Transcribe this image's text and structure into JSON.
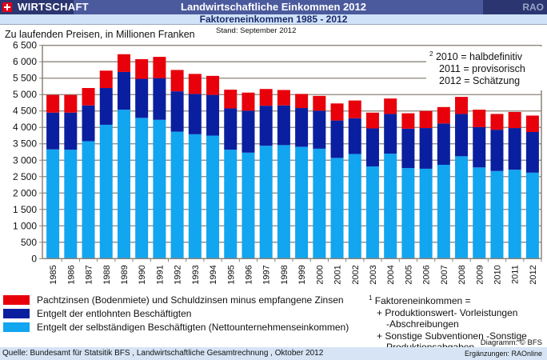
{
  "header": {
    "section": "WIRTSCHAFT",
    "title": "Landwirtschaftliche Einkommen 2012",
    "brand": "RAO",
    "subtitle": "Faktoreneinkommen 1985 - 2012",
    "flag_icon": "swiss-flag-icon"
  },
  "chart_meta": {
    "units_label": "Zu laufenden Preisen, in Millionen Franken",
    "stand": "Stand: September 2012",
    "note_lines": [
      "2010 = halbdefinitiv",
      "2011 = provisorisch",
      "2012 = Schätzung"
    ],
    "note_superscript": "2",
    "footnote_superscript": "1",
    "footnote_lines": [
      "Faktoreneinkommen =",
      "+ Produktionswert- Vorleistungen",
      "-Abschreibungen",
      "+ Sonstige Subventionen -Sonstige",
      "Produktionsabgaben"
    ],
    "credit": "Diagramm: © BFS"
  },
  "footer": {
    "source": "Quelle: Bundesamt für Statsitik BFS , Landwirtschaftliche Gesamtrechnung , Oktober 2012",
    "extras": "Ergänzungen: RAOnline"
  },
  "chart_data": {
    "type": "bar",
    "stacked": true,
    "title": "Faktoreneinkommen 1985 - 2012",
    "ylabel": "Zu laufenden Preisen, in Millionen Franken",
    "xlabel": "",
    "ylim": [
      0,
      6500
    ],
    "yticks": [
      0,
      500,
      1000,
      1500,
      2000,
      2500,
      3000,
      3500,
      4000,
      4500,
      5000,
      5500,
      6000,
      6500
    ],
    "ytick_labels": [
      "0",
      "500",
      "1 000",
      "1 500",
      "2 000",
      "2 500",
      "3 000",
      "3 500",
      "4 000",
      "4 500",
      "5 000",
      "5 500",
      "6 000",
      "6 500"
    ],
    "grid": true,
    "legend_position": "bottom-left",
    "categories": [
      "1985",
      "1986",
      "1987",
      "1988",
      "1989",
      "1990",
      "1991",
      "1992",
      "1993",
      "1994",
      "1995",
      "1996",
      "1997",
      "1998",
      "1999",
      "2000",
      "2001",
      "2002",
      "2003",
      "2004",
      "2005",
      "2006",
      "2007",
      "2008",
      "2009",
      "2010",
      "2011",
      "2012"
    ],
    "series": [
      {
        "name": "Entgelt der selbständigen Beschäftigten (Nettounternehmenseinkommen)",
        "color": "#12a5f0",
        "values": [
          3330,
          3320,
          3580,
          4080,
          4540,
          4290,
          4230,
          3870,
          3790,
          3750,
          3320,
          3230,
          3440,
          3460,
          3410,
          3350,
          3070,
          3190,
          2810,
          3200,
          2760,
          2740,
          2860,
          3120,
          2780,
          2670,
          2710,
          2620
        ]
      },
      {
        "name": "Entgelt der entlohnten Beschäftigten",
        "color": "#0a1fa0",
        "values": [
          1120,
          1130,
          1090,
          1120,
          1150,
          1190,
          1270,
          1230,
          1230,
          1240,
          1260,
          1280,
          1220,
          1210,
          1180,
          1160,
          1140,
          1090,
          1160,
          1210,
          1200,
          1240,
          1260,
          1290,
          1230,
          1260,
          1270,
          1240
        ]
      },
      {
        "name": "Pachtzinsen (Bodenmiete) und Schuldzinsen minus empfangene Zinsen",
        "color": "#e8000b",
        "values": [
          540,
          540,
          530,
          530,
          540,
          600,
          650,
          650,
          610,
          580,
          570,
          550,
          510,
          470,
          430,
          450,
          520,
          540,
          480,
          470,
          470,
          520,
          500,
          520,
          530,
          480,
          490,
          500
        ]
      }
    ],
    "legend_order": [
      2,
      1,
      0
    ]
  }
}
